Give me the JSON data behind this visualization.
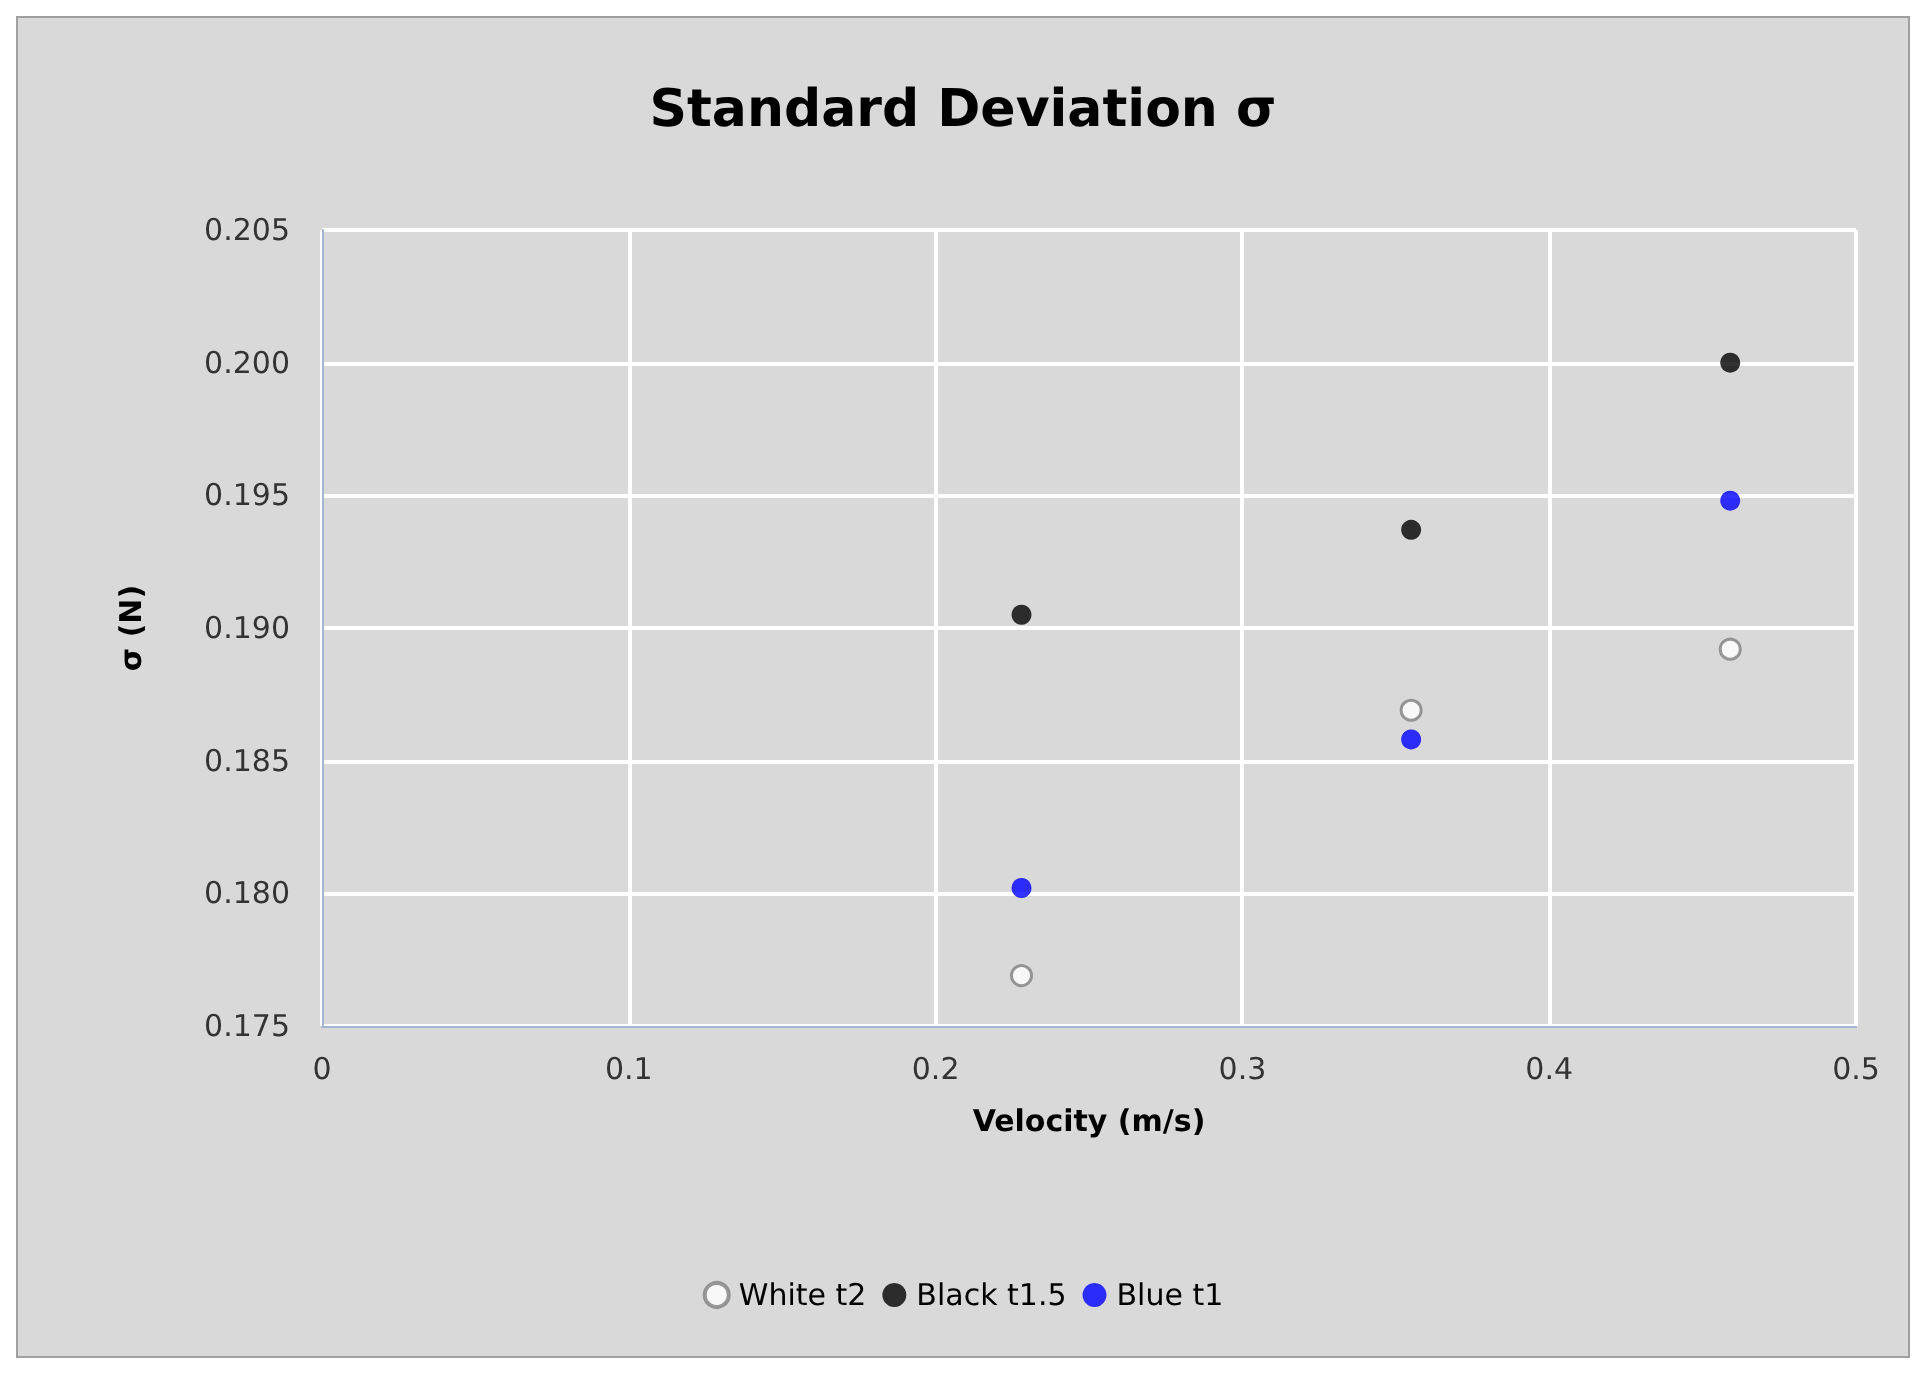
{
  "chart_data": {
    "type": "scatter",
    "title": "Standard Deviation σ",
    "xlabel": "Velocity (m/s)",
    "ylabel": "σ (N)",
    "series": [
      {
        "name": "White t2",
        "color": "#ffffff",
        "x": [
          0.228,
          0.355,
          0.459
        ],
        "values": [
          0.1769,
          0.1869,
          0.1892
        ]
      },
      {
        "name": "Black t1.5",
        "color": "#000000",
        "x": [
          0.228,
          0.355,
          0.459
        ],
        "values": [
          0.1905,
          0.1937,
          0.2
        ]
      },
      {
        "name": "Blue t1",
        "color": "#0000ff",
        "x": [
          0.228,
          0.355,
          0.459
        ],
        "values": [
          0.1802,
          0.1858,
          0.1948
        ]
      }
    ],
    "xlim": [
      0,
      0.5
    ],
    "xticks": [
      0,
      0.1,
      0.2,
      0.3,
      0.4,
      0.5
    ],
    "ylim": [
      0.175,
      0.205
    ],
    "yticks": [
      {
        "value": 0.175,
        "label": "0.175"
      },
      {
        "value": 0.18,
        "label": "0.180"
      },
      {
        "value": 0.185,
        "label": "0.185"
      },
      {
        "value": 0.19,
        "label": "0.190"
      },
      {
        "value": 0.195,
        "label": "0.195"
      },
      {
        "value": 0.2,
        "label": "0.200"
      },
      {
        "value": 0.205,
        "label": "0.205"
      }
    ],
    "grid": true,
    "legend": "bottom",
    "marker": "circle"
  }
}
